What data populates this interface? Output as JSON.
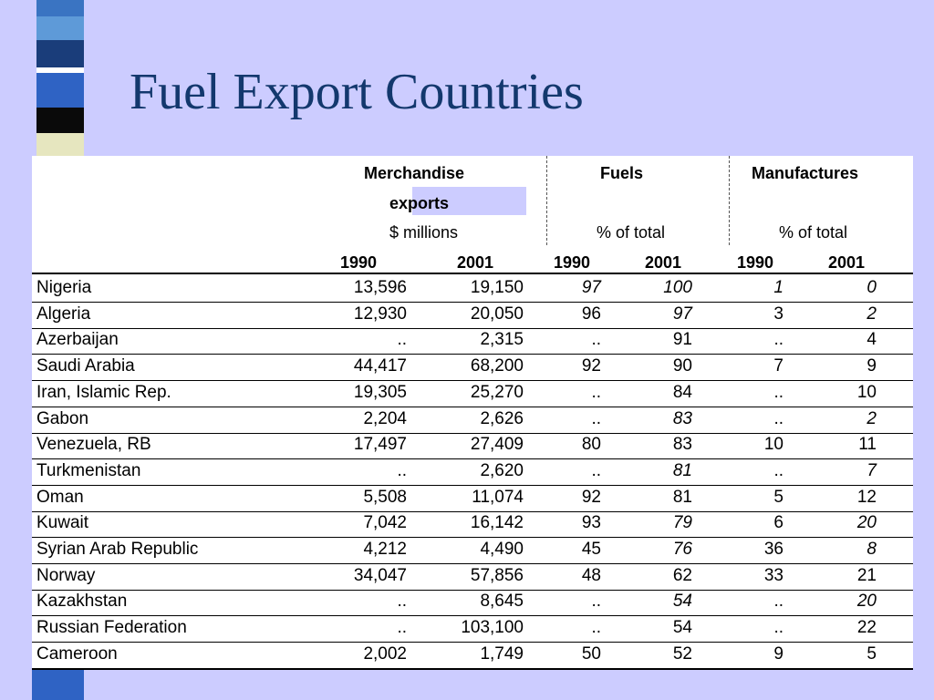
{
  "slide": {
    "title": "Fuel Export Countries"
  },
  "colors": {
    "background": "#ccccff",
    "title": "#13386d",
    "table_bg": "#ffffff"
  },
  "table": {
    "groups": [
      {
        "title_line1": "Merchandise",
        "title_line2": "exports",
        "unit": "$ millions"
      },
      {
        "title_line1": "Fuels",
        "title_line2": "",
        "unit": "% of total"
      },
      {
        "title_line1": "Manufactures",
        "title_line2": "",
        "unit": "% of total"
      }
    ],
    "years": [
      "1990",
      "2001",
      "1990",
      "2001",
      "1990",
      "2001"
    ],
    "rows": [
      {
        "country": "Nigeria",
        "merch_1990": "13,596",
        "merch_2001": "19,150",
        "fuels_1990": "97",
        "fuels_2001": "100",
        "manuf_1990": "1",
        "manuf_2001": "0"
      },
      {
        "country": "Algeria",
        "merch_1990": "12,930",
        "merch_2001": "20,050",
        "fuels_1990": "96",
        "fuels_2001": "97",
        "manuf_1990": "3",
        "manuf_2001": "2"
      },
      {
        "country": "Azerbaijan",
        "merch_1990": "..",
        "merch_2001": "2,315",
        "fuels_1990": "..",
        "fuels_2001": "91",
        "manuf_1990": "..",
        "manuf_2001": "4"
      },
      {
        "country": "Saudi Arabia",
        "merch_1990": "44,417",
        "merch_2001": "68,200",
        "fuels_1990": "92",
        "fuels_2001": "90",
        "manuf_1990": "7",
        "manuf_2001": "9"
      },
      {
        "country": "Iran, Islamic Rep.",
        "merch_1990": "19,305",
        "merch_2001": "25,270",
        "fuels_1990": "..",
        "fuels_2001": "84",
        "manuf_1990": "..",
        "manuf_2001": "10"
      },
      {
        "country": "Gabon",
        "merch_1990": "2,204",
        "merch_2001": "2,626",
        "fuels_1990": "..",
        "fuels_2001": "83",
        "manuf_1990": "..",
        "manuf_2001": "2"
      },
      {
        "country": "Venezuela, RB",
        "merch_1990": "17,497",
        "merch_2001": "27,409",
        "fuels_1990": "80",
        "fuels_2001": "83",
        "manuf_1990": "10",
        "manuf_2001": "11"
      },
      {
        "country": "Turkmenistan",
        "merch_1990": "..",
        "merch_2001": "2,620",
        "fuels_1990": "..",
        "fuels_2001": "81",
        "manuf_1990": "..",
        "manuf_2001": "7"
      },
      {
        "country": "Oman",
        "merch_1990": "5,508",
        "merch_2001": "11,074",
        "fuels_1990": "92",
        "fuels_2001": "81",
        "manuf_1990": "5",
        "manuf_2001": "12"
      },
      {
        "country": "Kuwait",
        "merch_1990": "7,042",
        "merch_2001": "16,142",
        "fuels_1990": "93",
        "fuels_2001": "79",
        "manuf_1990": "6",
        "manuf_2001": "20"
      },
      {
        "country": "Syrian Arab Republic",
        "merch_1990": "4,212",
        "merch_2001": "4,490",
        "fuels_1990": "45",
        "fuels_2001": "76",
        "manuf_1990": "36",
        "manuf_2001": "8"
      },
      {
        "country": "Norway",
        "merch_1990": "34,047",
        "merch_2001": "57,856",
        "fuels_1990": "48",
        "fuels_2001": "62",
        "manuf_1990": "33",
        "manuf_2001": "21"
      },
      {
        "country": "Kazakhstan",
        "merch_1990": "..",
        "merch_2001": "8,645",
        "fuels_1990": "..",
        "fuels_2001": "54",
        "manuf_1990": "..",
        "manuf_2001": "20"
      },
      {
        "country": "Russian Federation",
        "merch_1990": "..",
        "merch_2001": "103,100",
        "fuels_1990": "..",
        "fuels_2001": "54",
        "manuf_1990": "..",
        "manuf_2001": "22"
      },
      {
        "country": "Cameroon",
        "merch_1990": "2,002",
        "merch_2001": "1,749",
        "fuels_1990": "50",
        "fuels_2001": "52",
        "manuf_1990": "9",
        "manuf_2001": "5"
      }
    ]
  }
}
